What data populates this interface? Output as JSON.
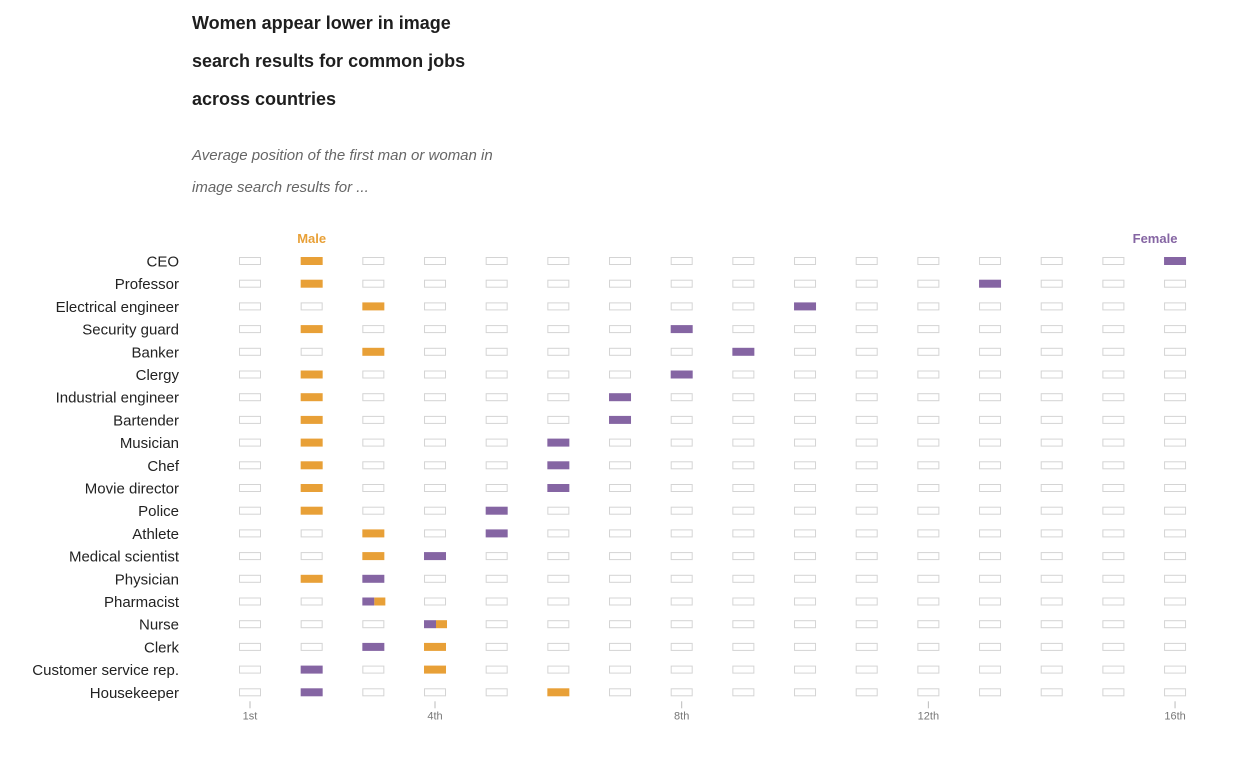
{
  "header": {
    "title": "Women appear lower in image search results for common jobs across countries",
    "subtitle": "Average position of the first man or woman in image search results for ..."
  },
  "colors": {
    "male": "#e8a037",
    "female": "#8565a3",
    "empty_stroke": "#d4d4d4"
  },
  "chart_data": {
    "type": "dot-matrix",
    "legend": [
      "Male",
      "Female"
    ],
    "x_positions": 16,
    "x_ticks": [
      {
        "value": 1,
        "label": "1st"
      },
      {
        "value": 4,
        "label": "4th"
      },
      {
        "value": 8,
        "label": "8th"
      },
      {
        "value": 12,
        "label": "12th"
      },
      {
        "value": 16,
        "label": "16th"
      }
    ],
    "rows": [
      {
        "label": "CEO",
        "male": 2,
        "female": 16
      },
      {
        "label": "Professor",
        "male": 2,
        "female": 13
      },
      {
        "label": "Electrical engineer",
        "male": 3,
        "female": 10
      },
      {
        "label": "Security guard",
        "male": 2,
        "female": 8
      },
      {
        "label": "Banker",
        "male": 3,
        "female": 9
      },
      {
        "label": "Clergy",
        "male": 2,
        "female": 8
      },
      {
        "label": "Industrial engineer",
        "male": 2,
        "female": 7
      },
      {
        "label": "Bartender",
        "male": 2,
        "female": 7
      },
      {
        "label": "Musician",
        "male": 2,
        "female": 6
      },
      {
        "label": "Chef",
        "male": 2,
        "female": 6
      },
      {
        "label": "Movie director",
        "male": 2,
        "female": 6
      },
      {
        "label": "Police",
        "male": 2,
        "female": 5
      },
      {
        "label": "Athlete",
        "male": 3,
        "female": 5
      },
      {
        "label": "Medical scientist",
        "male": 3,
        "female": 4
      },
      {
        "label": "Physician",
        "male": 2,
        "female": 3
      },
      {
        "label": "Pharmacist",
        "male": 3,
        "female": 3,
        "split": true
      },
      {
        "label": "Nurse",
        "male": 4,
        "female": 4,
        "split": true
      },
      {
        "label": "Clerk",
        "male": 4,
        "female": 3
      },
      {
        "label": "Customer service rep.",
        "male": 4,
        "female": 2
      },
      {
        "label": "Housekeeper",
        "male": 6,
        "female": 2
      }
    ]
  }
}
